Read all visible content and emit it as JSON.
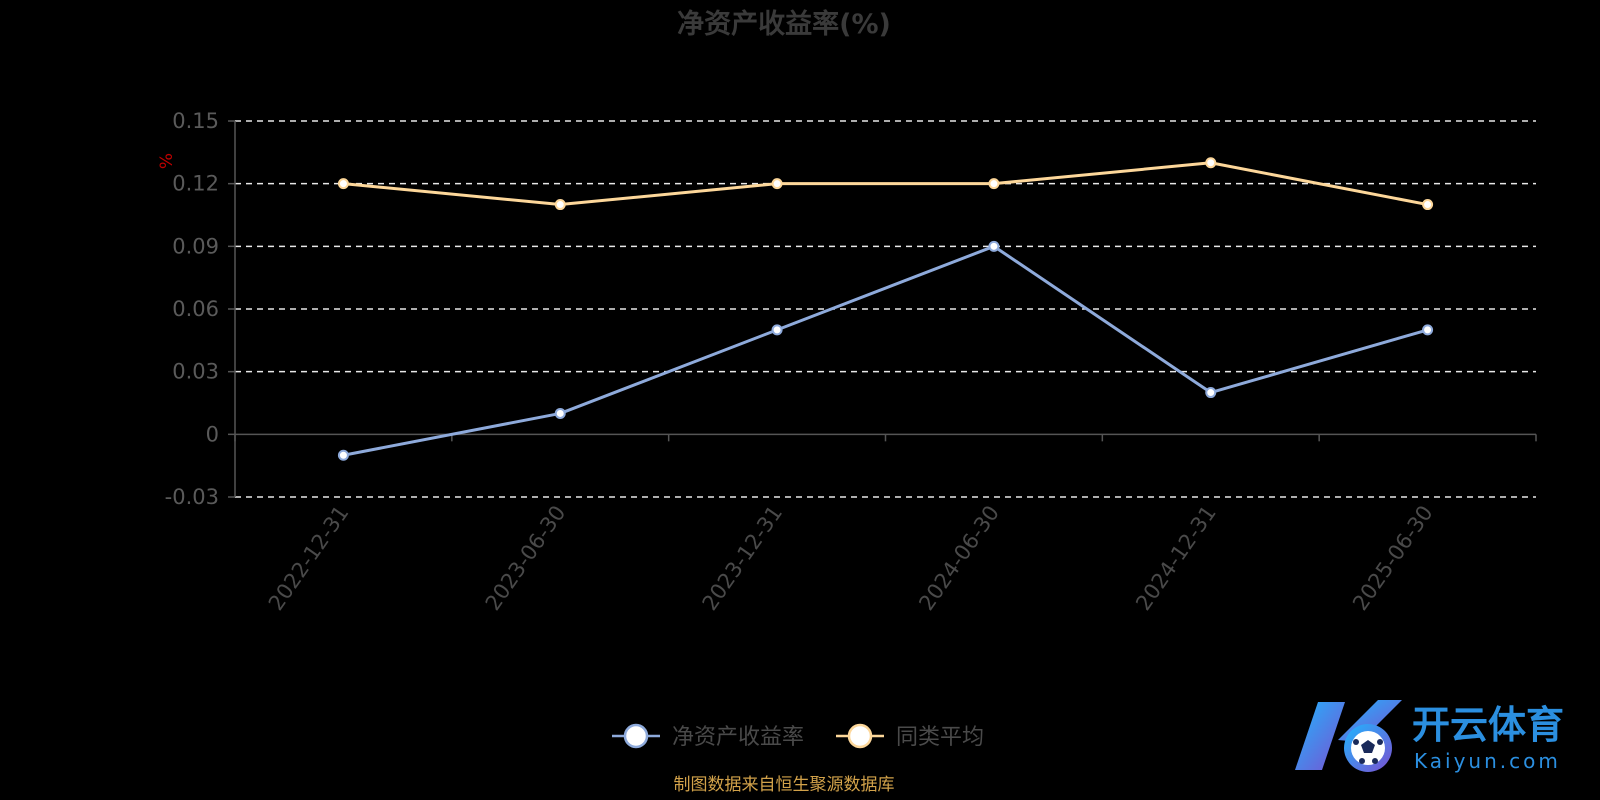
{
  "chart_data": {
    "type": "line",
    "title": "净资产收益率(%)",
    "ylabel": "%",
    "categories": [
      "2022-12-31",
      "2023-06-30",
      "2023-12-31",
      "2024-06-30",
      "2024-12-31",
      "2025-06-30"
    ],
    "series": [
      {
        "name": "净资产收益率",
        "values": [
          -0.01,
          0.01,
          0.05,
          0.09,
          0.02,
          0.05
        ],
        "color": "#8eaadb"
      },
      {
        "name": "同类平均",
        "values": [
          0.12,
          0.11,
          0.12,
          0.12,
          0.13,
          0.11
        ],
        "color": "#fdd79a"
      }
    ],
    "ylim": [
      -0.03,
      0.15
    ],
    "yticks": [
      "0.15",
      "0.12",
      "0.09",
      "0.06",
      "0.03",
      "0",
      "-0.03"
    ],
    "grid": true,
    "legend_position": "bottom-center"
  },
  "source": "制图数据来自恒生聚源数据库",
  "logo": {
    "name": "开云体育",
    "domain": "Kaiyun.com",
    "colors": [
      "#2b8fe0",
      "#7b4fd0"
    ]
  }
}
